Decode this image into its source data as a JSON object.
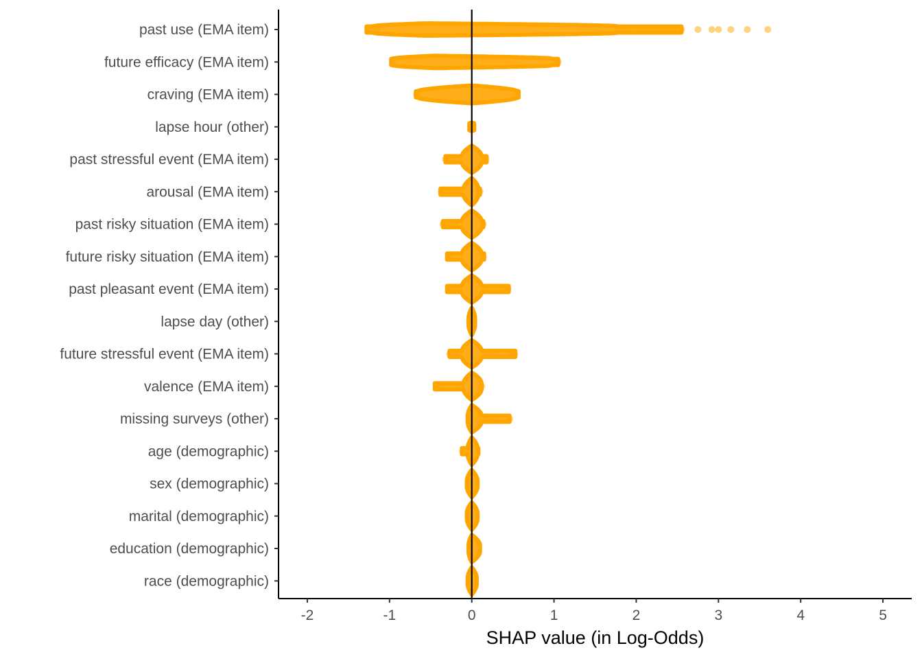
{
  "chart_data": {
    "type": "scatter",
    "title": "",
    "xlabel": "SHAP value (in Log-Odds)",
    "ylabel": "",
    "xlim": [
      -2.35,
      5.35
    ],
    "x_ticks": [
      "-2",
      "-1",
      "0",
      "1",
      "2",
      "3",
      "4",
      "5"
    ],
    "x_tick_values": [
      -2,
      -1,
      0,
      1,
      2,
      3,
      4,
      5
    ],
    "grid": false,
    "legend": "none",
    "reference_line_x": 0,
    "point_color": "#FFA500",
    "features": [
      {
        "label": "past use (EMA item)",
        "band": {
          "min": -1.28,
          "max": 2.55,
          "dense_min": -1.2,
          "dense_max": 1.75,
          "mode": -0.55,
          "max_halfheight": 9
        },
        "points": [
          -1.25,
          -1.15,
          1.78,
          1.9,
          2.05,
          2.2,
          2.35,
          2.45,
          2.55,
          2.75,
          2.92,
          3.0,
          3.15,
          3.35,
          3.6
        ]
      },
      {
        "label": "future efficacy (EMA item)",
        "band": {
          "min": -0.98,
          "max": 1.05,
          "dense_min": -0.95,
          "dense_max": 0.98,
          "mode": -0.45,
          "max_halfheight": 9
        },
        "points": [
          -0.96,
          1.05
        ]
      },
      {
        "label": "craving (EMA item)",
        "band": {
          "min": -0.68,
          "max": 0.57,
          "dense_min": -0.65,
          "dense_max": 0.55,
          "mode": 0.0,
          "max_halfheight": 13
        },
        "points": [
          -0.67,
          0.55
        ]
      },
      {
        "label": "lapse hour (other)",
        "band": {
          "min": -0.03,
          "max": 0.03,
          "dense_min": -0.03,
          "dense_max": 0.03,
          "mode": 0.0,
          "max_halfheight": 6
        },
        "points": []
      },
      {
        "label": "past stressful event (EMA item)",
        "band": {
          "min": -0.32,
          "max": 0.18,
          "dense_min": -0.12,
          "dense_max": 0.12,
          "mode": 0.0,
          "max_halfheight": 20
        },
        "points": [
          -0.32,
          -0.25,
          0.17
        ]
      },
      {
        "label": "arousal (EMA item)",
        "band": {
          "min": -0.38,
          "max": 0.1,
          "dense_min": -0.1,
          "dense_max": 0.08,
          "mode": 0.0,
          "max_halfheight": 20
        },
        "points": [
          -0.37,
          -0.3,
          -0.22,
          -0.15,
          0.1
        ]
      },
      {
        "label": "past risky situation (EMA item)",
        "band": {
          "min": -0.35,
          "max": 0.14,
          "dense_min": -0.12,
          "dense_max": 0.12,
          "mode": 0.0,
          "max_halfheight": 20
        },
        "points": [
          -0.35,
          -0.28,
          -0.2,
          0.14
        ]
      },
      {
        "label": "future risky situation (EMA item)",
        "band": {
          "min": -0.3,
          "max": 0.15,
          "dense_min": -0.12,
          "dense_max": 0.12,
          "mode": 0.0,
          "max_halfheight": 20
        },
        "points": [
          -0.28,
          0.14
        ]
      },
      {
        "label": "past pleasant event (EMA item)",
        "band": {
          "min": -0.3,
          "max": 0.45,
          "dense_min": -0.12,
          "dense_max": 0.12,
          "mode": 0.0,
          "max_halfheight": 20
        },
        "points": [
          -0.27,
          -0.18,
          0.17,
          0.38,
          0.44
        ]
      },
      {
        "label": "lapse day (other)",
        "band": {
          "min": -0.04,
          "max": 0.04,
          "dense_min": -0.04,
          "dense_max": 0.04,
          "mode": 0.0,
          "max_halfheight": 20
        },
        "points": []
      },
      {
        "label": "future stressful event (EMA item)",
        "band": {
          "min": -0.27,
          "max": 0.53,
          "dense_min": -0.12,
          "dense_max": 0.12,
          "mode": 0.0,
          "max_halfheight": 20
        },
        "points": [
          -0.27,
          -0.2,
          0.2,
          0.25,
          0.48,
          0.52
        ]
      },
      {
        "label": "valence (EMA item)",
        "band": {
          "min": -0.45,
          "max": 0.12,
          "dense_min": -0.1,
          "dense_max": 0.12,
          "mode": 0.0,
          "max_halfheight": 20
        },
        "points": [
          -0.43,
          -0.38,
          -0.14,
          0.12
        ]
      },
      {
        "label": "missing surveys (other)",
        "band": {
          "min": -0.05,
          "max": 0.46,
          "dense_min": -0.05,
          "dense_max": 0.12,
          "mode": 0.0,
          "max_halfheight": 20
        },
        "points": [
          0.2,
          0.26,
          0.46,
          0.08
        ]
      },
      {
        "label": "age (demographic)",
        "band": {
          "min": -0.12,
          "max": 0.08,
          "dense_min": -0.05,
          "dense_max": 0.07,
          "mode": 0.0,
          "max_halfheight": 20
        },
        "points": [
          -0.11
        ]
      },
      {
        "label": "sex (demographic)",
        "band": {
          "min": -0.06,
          "max": 0.07,
          "dense_min": -0.06,
          "dense_max": 0.07,
          "mode": 0.0,
          "max_halfheight": 20
        },
        "points": []
      },
      {
        "label": "marital (demographic)",
        "band": {
          "min": -0.06,
          "max": 0.07,
          "dense_min": -0.06,
          "dense_max": 0.07,
          "mode": 0.0,
          "max_halfheight": 20
        },
        "points": []
      },
      {
        "label": "education (demographic)",
        "band": {
          "min": -0.04,
          "max": 0.1,
          "dense_min": -0.04,
          "dense_max": 0.1,
          "mode": 0.0,
          "max_halfheight": 20
        },
        "points": []
      },
      {
        "label": "race (demographic)",
        "band": {
          "min": -0.05,
          "max": 0.06,
          "dense_min": -0.05,
          "dense_max": 0.06,
          "mode": 0.0,
          "max_halfheight": 20
        },
        "points": []
      }
    ]
  }
}
